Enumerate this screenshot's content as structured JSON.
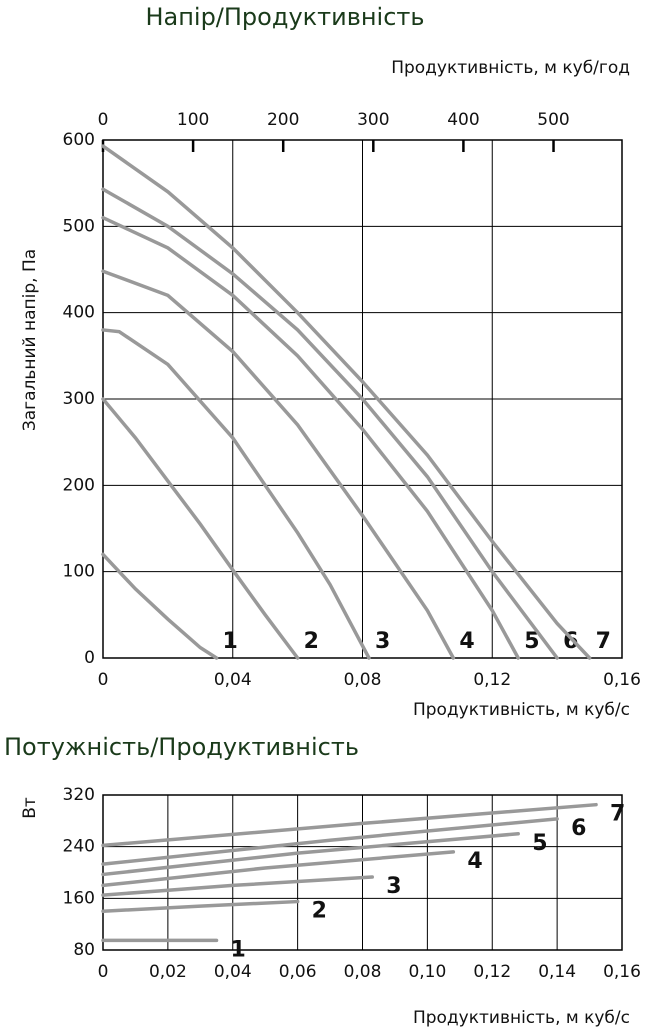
{
  "chart_data": [
    {
      "type": "line",
      "title": "Напір/Продуктивність",
      "xlabel": "Продуктивність, м куб/с",
      "ylabel": "Загальний напір, Па",
      "x2label": "Продуктивність, м куб/год",
      "xlim": [
        0,
        0.16
      ],
      "xticks": [
        0,
        {
          "value": 0.04,
          "label": "0,04"
        },
        {
          "value": 0.08,
          "label": "0,08"
        },
        {
          "value": 0.12,
          "label": "0,12"
        },
        {
          "value": 0.16,
          "label": "0,16"
        }
      ],
      "x2lim": [
        0,
        576
      ],
      "x2ticks": [
        0,
        100,
        200,
        300,
        400,
        500
      ],
      "ylim": [
        0,
        600
      ],
      "yticks": [
        0,
        100,
        200,
        300,
        400,
        500,
        600
      ],
      "grid": true,
      "series": [
        {
          "name": "1",
          "color": "#999999",
          "x": [
            0,
            0.01,
            0.02,
            0.03,
            0.035
          ],
          "values": [
            120,
            80,
            45,
            12,
            0
          ]
        },
        {
          "name": "2",
          "color": "#999999",
          "x": [
            0,
            0.01,
            0.02,
            0.03,
            0.04,
            0.05,
            0.06
          ],
          "values": [
            300,
            255,
            205,
            155,
            102,
            50,
            0
          ]
        },
        {
          "name": "3",
          "color": "#999999",
          "x": [
            0,
            0.005,
            0.02,
            0.04,
            0.06,
            0.07,
            0.082
          ],
          "values": [
            380,
            378,
            340,
            255,
            145,
            85,
            0
          ]
        },
        {
          "name": "4",
          "color": "#999999",
          "x": [
            0,
            0.02,
            0.04,
            0.06,
            0.08,
            0.1,
            0.108
          ],
          "values": [
            448,
            420,
            355,
            270,
            165,
            55,
            0
          ]
        },
        {
          "name": "5",
          "color": "#999999",
          "x": [
            0,
            0.02,
            0.04,
            0.06,
            0.08,
            0.1,
            0.12,
            0.128
          ],
          "values": [
            510,
            475,
            420,
            350,
            265,
            170,
            55,
            0
          ]
        },
        {
          "name": "6",
          "color": "#999999",
          "x": [
            0,
            0.02,
            0.04,
            0.06,
            0.08,
            0.1,
            0.12,
            0.14
          ],
          "values": [
            543,
            500,
            445,
            380,
            300,
            210,
            100,
            0
          ]
        },
        {
          "name": "7",
          "color": "#999999",
          "x": [
            0,
            0.02,
            0.04,
            0.06,
            0.08,
            0.1,
            0.12,
            0.14,
            0.15
          ],
          "values": [
            593,
            540,
            475,
            400,
            320,
            235,
            135,
            40,
            0
          ]
        }
      ]
    },
    {
      "type": "line",
      "title": "Потужність/Продуктивність",
      "xlabel": "Продуктивність, м куб/с",
      "ylabel": "Вт",
      "xlim": [
        0,
        0.16
      ],
      "xticks": [
        0,
        {
          "value": 0.02,
          "label": "0,02"
        },
        {
          "value": 0.04,
          "label": "0,04"
        },
        {
          "value": 0.06,
          "label": "0,06"
        },
        {
          "value": 0.08,
          "label": "0,08"
        },
        {
          "value": 0.1,
          "label": "0,10"
        },
        {
          "value": 0.12,
          "label": "0,12"
        },
        {
          "value": 0.14,
          "label": "0,14"
        },
        {
          "value": 0.16,
          "label": "0,16"
        }
      ],
      "ylim": [
        80,
        320
      ],
      "yticks": [
        80,
        160,
        240,
        320
      ],
      "grid": true,
      "series": [
        {
          "name": "1",
          "color": "#999999",
          "x": [
            0,
            0.035
          ],
          "values": [
            95,
            95
          ]
        },
        {
          "name": "2",
          "color": "#999999",
          "x": [
            0,
            0.03,
            0.06
          ],
          "values": [
            140,
            148,
            155
          ]
        },
        {
          "name": "3",
          "color": "#999999",
          "x": [
            0,
            0.04,
            0.083
          ],
          "values": [
            165,
            180,
            193
          ]
        },
        {
          "name": "4",
          "color": "#999999",
          "x": [
            0,
            0.05,
            0.108
          ],
          "values": [
            180,
            207,
            232
          ]
        },
        {
          "name": "5",
          "color": "#999999",
          "x": [
            0,
            0.06,
            0.128
          ],
          "values": [
            197,
            230,
            260
          ]
        },
        {
          "name": "6",
          "color": "#999999",
          "x": [
            0,
            0.07,
            0.14
          ],
          "values": [
            213,
            250,
            283
          ]
        },
        {
          "name": "7",
          "color": "#999999",
          "x": [
            0,
            0.08,
            0.152
          ],
          "values": [
            242,
            276,
            305
          ]
        }
      ]
    }
  ]
}
